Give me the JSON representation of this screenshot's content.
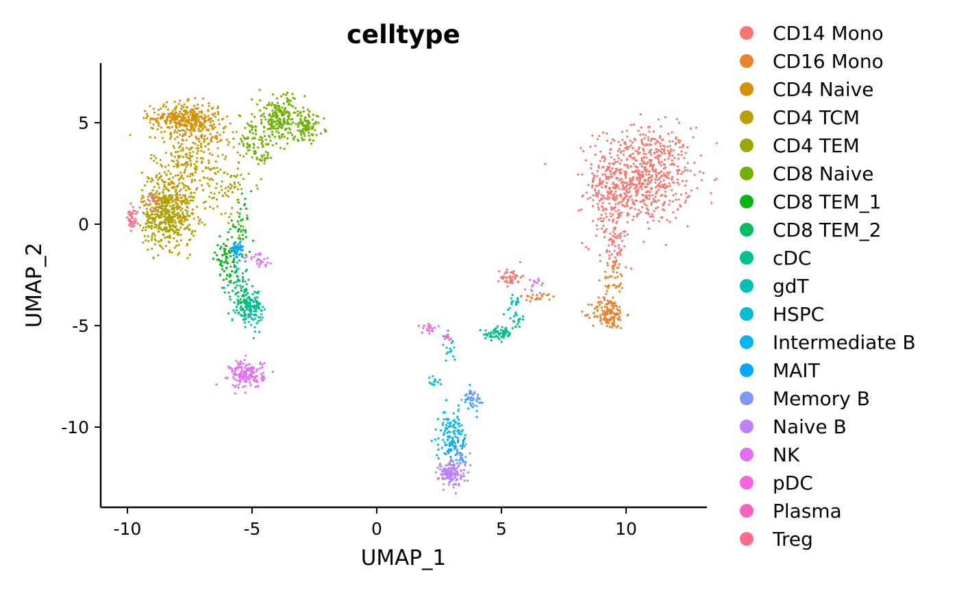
{
  "chart_data": {
    "type": "scatter",
    "title": "celltype",
    "xlabel": "UMAP_1",
    "ylabel": "UMAP_2",
    "xlim": [
      -11,
      13.5
    ],
    "ylim": [
      -14,
      8
    ],
    "xticks": [
      -10,
      -5,
      0,
      5,
      10
    ],
    "yticks": [
      5,
      0,
      -5,
      -10
    ],
    "xtick_labels": [
      "-10",
      "-5",
      "0",
      "5",
      "10"
    ],
    "ytick_labels": [
      "5",
      "0",
      "-5",
      "-10"
    ],
    "grid": false,
    "legend_position": "right",
    "series": [
      {
        "name": "CD14 Mono",
        "color": "#F8766D",
        "clusters": [
          {
            "cx": 10.7,
            "cy": 2.4,
            "sx": 1.15,
            "sy": 1.4,
            "n": 680
          },
          {
            "cx": 9.3,
            "cy": 1.2,
            "sx": 0.6,
            "sy": 1.3,
            "n": 140
          },
          {
            "cx": 9.5,
            "cy": -1.0,
            "sx": 0.3,
            "sy": 0.9,
            "n": 60
          },
          {
            "cx": 5.4,
            "cy": -2.6,
            "sx": 0.25,
            "sy": 0.25,
            "n": 45
          }
        ]
      },
      {
        "name": "CD16 Mono",
        "color": "#E9842C",
        "clusters": [
          {
            "cx": 9.3,
            "cy": -4.4,
            "sx": 0.4,
            "sy": 0.45,
            "n": 150
          },
          {
            "cx": 9.5,
            "cy": -2.7,
            "sx": 0.25,
            "sy": 0.6,
            "n": 40
          },
          {
            "cx": 6.4,
            "cy": -3.6,
            "sx": 0.5,
            "sy": 0.12,
            "n": 25
          }
        ]
      },
      {
        "name": "CD4 Naive",
        "color": "#D69100",
        "clusters": [
          {
            "cx": -7.7,
            "cy": 5.2,
            "sx": 0.8,
            "sy": 0.45,
            "n": 360
          },
          {
            "cx": -6.6,
            "cy": 4.4,
            "sx": 0.5,
            "sy": 0.5,
            "n": 60
          }
        ]
      },
      {
        "name": "CD4 TCM",
        "color": "#BC9D00",
        "clusters": [
          {
            "cx": -8.3,
            "cy": 0.8,
            "sx": 0.65,
            "sy": 1.1,
            "n": 420
          },
          {
            "cx": -7.6,
            "cy": 3.0,
            "sx": 0.9,
            "sy": 0.8,
            "n": 160
          },
          {
            "cx": -6.0,
            "cy": 1.2,
            "sx": 0.5,
            "sy": 0.8,
            "n": 40
          }
        ]
      },
      {
        "name": "CD4 TEM",
        "color": "#9CA700",
        "clusters": [
          {
            "cx": -8.5,
            "cy": 0.2,
            "sx": 0.5,
            "sy": 0.8,
            "n": 140
          },
          {
            "cx": -5.8,
            "cy": 2.3,
            "sx": 0.6,
            "sy": 0.8,
            "n": 40
          }
        ]
      },
      {
        "name": "CD8 Naive",
        "color": "#6FB000",
        "clusters": [
          {
            "cx": -3.9,
            "cy": 5.2,
            "sx": 0.6,
            "sy": 0.7,
            "n": 220
          },
          {
            "cx": -2.8,
            "cy": 4.8,
            "sx": 0.4,
            "sy": 0.4,
            "n": 90
          },
          {
            "cx": -5.0,
            "cy": 4.2,
            "sx": 0.4,
            "sy": 0.5,
            "n": 50
          },
          {
            "cx": -4.6,
            "cy": 3.4,
            "sx": 0.35,
            "sy": 0.3,
            "n": 30
          }
        ]
      },
      {
        "name": "CD8 TEM_1",
        "color": "#00B813",
        "clusters": [
          {
            "cx": -6.0,
            "cy": -1.7,
            "sx": 0.3,
            "sy": 0.6,
            "n": 70
          },
          {
            "cx": -5.5,
            "cy": -0.3,
            "sx": 0.3,
            "sy": 0.8,
            "n": 40
          }
        ]
      },
      {
        "name": "CD8 TEM_2",
        "color": "#00BD61",
        "clusters": [
          {
            "cx": -5.2,
            "cy": -4.0,
            "sx": 0.35,
            "sy": 0.45,
            "n": 120
          },
          {
            "cx": -5.6,
            "cy": -2.8,
            "sx": 0.3,
            "sy": 0.4,
            "n": 40
          }
        ]
      },
      {
        "name": "cDC",
        "color": "#00C08E",
        "clusters": [
          {
            "cx": 4.9,
            "cy": -5.4,
            "sx": 0.35,
            "sy": 0.18,
            "n": 70
          },
          {
            "cx": 5.6,
            "cy": -4.7,
            "sx": 0.2,
            "sy": 0.25,
            "n": 20
          }
        ]
      },
      {
        "name": "gdT",
        "color": "#00C0B4",
        "clusters": [
          {
            "cx": -5.0,
            "cy": -4.3,
            "sx": 0.35,
            "sy": 0.45,
            "n": 60
          },
          {
            "cx": 5.5,
            "cy": -3.8,
            "sx": 0.2,
            "sy": 0.2,
            "n": 15
          }
        ]
      },
      {
        "name": "HSPC",
        "color": "#00BDD4",
        "clusters": [
          {
            "cx": 2.9,
            "cy": -6.2,
            "sx": 0.2,
            "sy": 0.4,
            "n": 15
          },
          {
            "cx": 2.3,
            "cy": -7.8,
            "sx": 0.12,
            "sy": 0.18,
            "n": 12
          }
        ]
      },
      {
        "name": "Intermediate B",
        "color": "#00B5EE",
        "clusters": [
          {
            "cx": 3.0,
            "cy": -10.2,
            "sx": 0.28,
            "sy": 0.6,
            "n": 90
          },
          {
            "cx": 3.8,
            "cy": -8.6,
            "sx": 0.25,
            "sy": 0.3,
            "n": 20
          }
        ]
      },
      {
        "name": "MAIT",
        "color": "#00A7FF",
        "clusters": [
          {
            "cx": -5.6,
            "cy": -1.3,
            "sx": 0.15,
            "sy": 0.3,
            "n": 45
          },
          {
            "cx": 3.1,
            "cy": -11.0,
            "sx": 0.3,
            "sy": 0.4,
            "n": 45
          }
        ]
      },
      {
        "name": "Memory B",
        "color": "#7F96FF",
        "clusters": [
          {
            "cx": 3.8,
            "cy": -8.5,
            "sx": 0.25,
            "sy": 0.3,
            "n": 25
          },
          {
            "cx": 3.3,
            "cy": -11.5,
            "sx": 0.3,
            "sy": 0.4,
            "n": 20
          }
        ]
      },
      {
        "name": "Naive B",
        "color": "#BC81FF",
        "clusters": [
          {
            "cx": 3.0,
            "cy": -12.3,
            "sx": 0.3,
            "sy": 0.35,
            "n": 140
          }
        ]
      },
      {
        "name": "NK",
        "color": "#E26EF7",
        "clusters": [
          {
            "cx": -5.2,
            "cy": -7.4,
            "sx": 0.4,
            "sy": 0.4,
            "n": 160
          },
          {
            "cx": -4.7,
            "cy": -1.8,
            "sx": 0.35,
            "sy": 0.2,
            "n": 25
          },
          {
            "cx": 6.4,
            "cy": -2.9,
            "sx": 0.2,
            "sy": 0.3,
            "n": 15
          }
        ]
      },
      {
        "name": "pDC",
        "color": "#F863DF",
        "clusters": [
          {
            "cx": 2.1,
            "cy": -5.1,
            "sx": 0.25,
            "sy": 0.15,
            "n": 20
          },
          {
            "cx": 2.8,
            "cy": -5.6,
            "sx": 0.1,
            "sy": 0.1,
            "n": 6
          }
        ]
      },
      {
        "name": "Plasma",
        "color": "#FF62BC",
        "clusters": [
          {
            "cx": 2.8,
            "cy": -5.6,
            "sx": 0.08,
            "sy": 0.08,
            "n": 5
          }
        ]
      },
      {
        "name": "Treg",
        "color": "#FF6C91",
        "clusters": [
          {
            "cx": -9.8,
            "cy": 0.2,
            "sx": 0.12,
            "sy": 0.35,
            "n": 35
          },
          {
            "cx": -9.0,
            "cy": 1.1,
            "sx": 0.2,
            "sy": 0.3,
            "n": 15
          }
        ]
      }
    ]
  }
}
